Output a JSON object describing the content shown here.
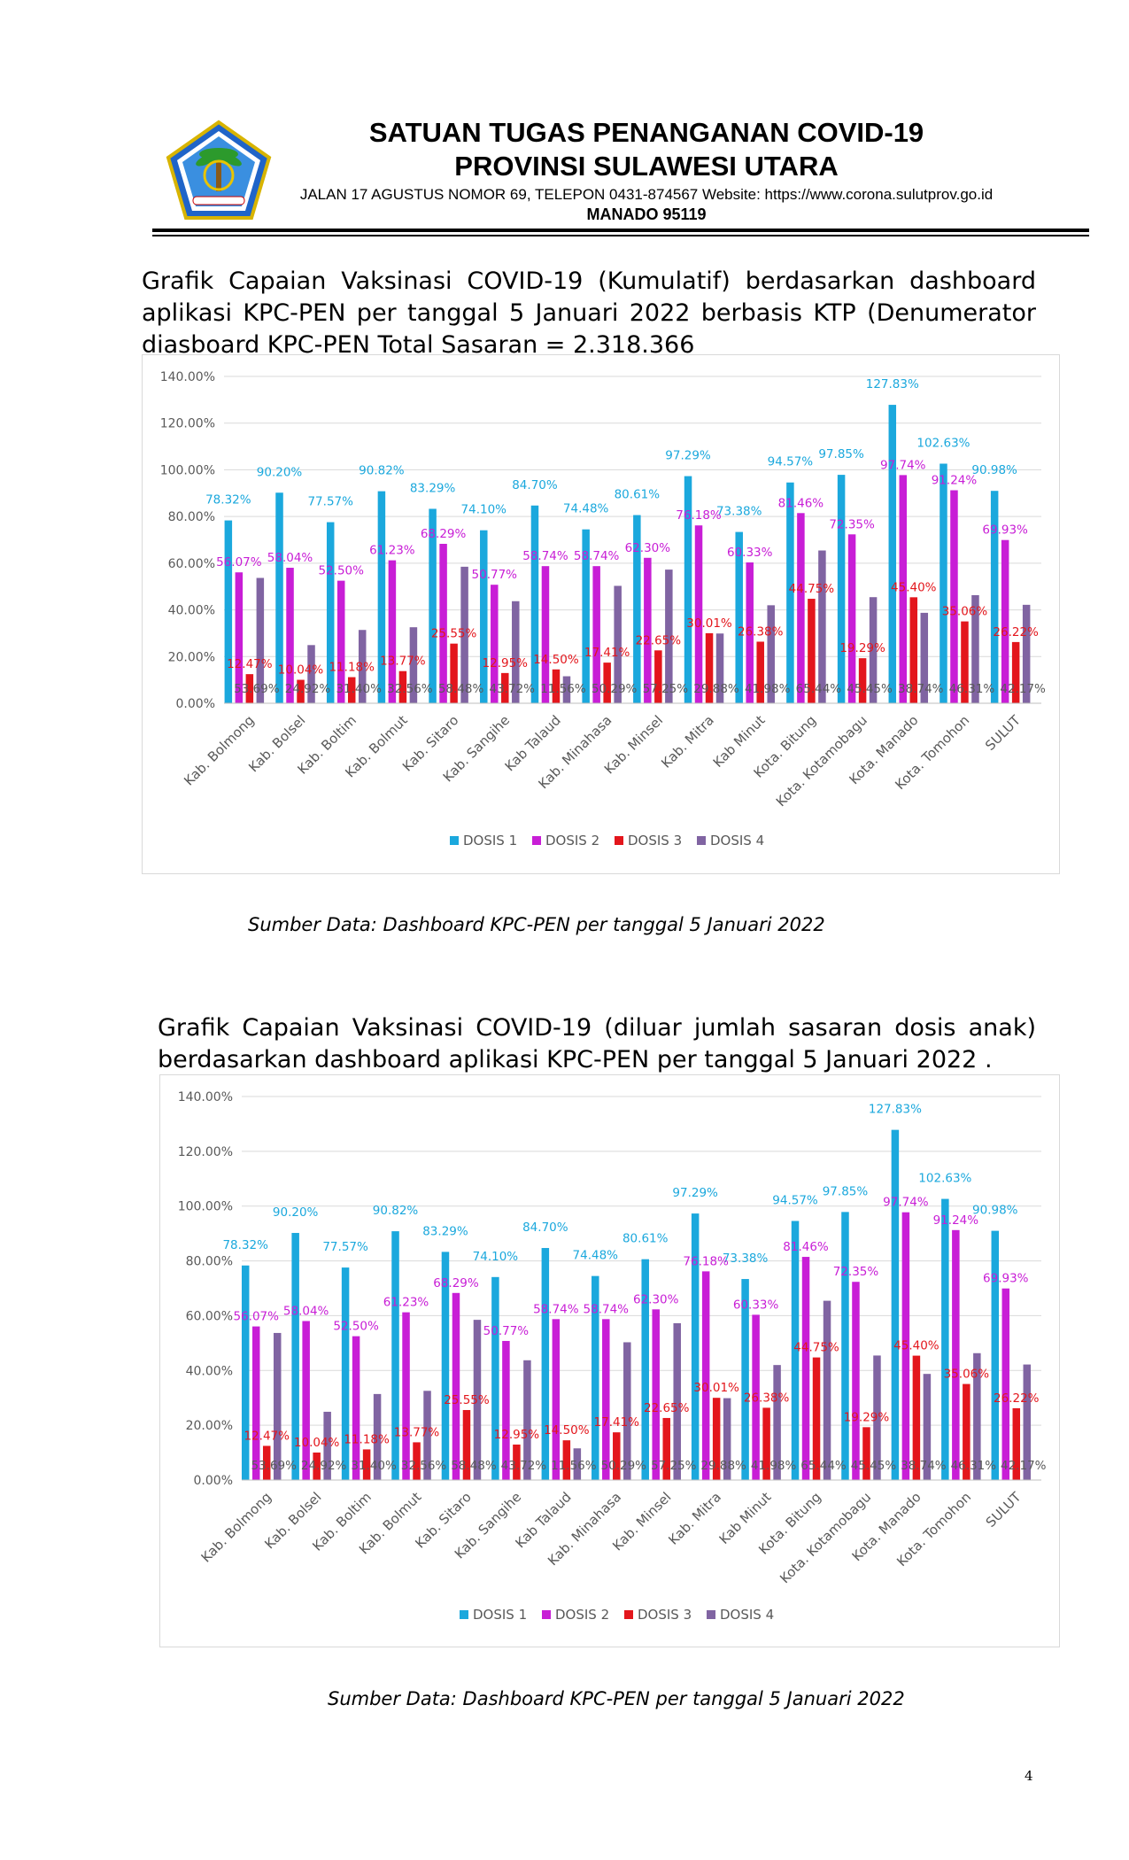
{
  "header": {
    "title_line1": "SATUAN TUGAS PENANGANAN COVID-19",
    "title_line2": "PROVINSI SULAWESI UTARA",
    "address": "JALAN 17 AGUSTUS NOMOR 69, TELEPON 0431-874567 Website: https://www.corona.sulutprov.go.id",
    "city": "MANADO  95119"
  },
  "paragraph1": "Grafik Capaian Vaksinasi COVID-19 (Kumulatif) berdasarkan dashboard aplikasi KPC-PEN per tanggal 5 Januari 2022 berbasis KTP (Denumerator diasboard KPC-PEN Total Sasaran =  2.318.366",
  "paragraph2": "Grafik Capaian Vaksinasi COVID-19 (diluar jumlah sasaran dosis anak) berdasarkan dashboard aplikasi KPC-PEN per tanggal 5 Januari 2022 .",
  "source1": "Sumber Data: Dashboard KPC-PEN per tanggal 5 Januari 2022",
  "source2": "Sumber Data: Dashboard KPC-PEN per tanggal 5 Januari 2022",
  "page_number": "4",
  "chart_data": [
    {
      "type": "bar",
      "categories": [
        "Kab. Bolmong",
        "Kab. Bolsel",
        "Kab. Boltim",
        "Kab. Bolmut",
        "Kab. Sitaro",
        "Kab. Sangihe",
        "Kab Talaud",
        "Kab. Minahasa",
        "Kab. Minsel",
        "Kab. Mitra",
        "Kab Minut",
        "Kota. Bitung",
        "Kota. Kotamobagu",
        "Kota. Manado",
        "Kota. Tomohon",
        "SULUT"
      ],
      "series": [
        {
          "name": "DOSIS 1",
          "color": "#1BA8DD",
          "values": [
            78.32,
            90.2,
            77.57,
            90.82,
            83.29,
            74.1,
            84.7,
            74.48,
            80.61,
            97.29,
            73.38,
            94.57,
            97.85,
            127.83,
            102.63,
            90.98
          ],
          "labels": [
            "78.32%",
            "90.20%",
            "77.57%",
            "90.82%",
            "83.29%",
            "74.10%",
            "84.70%",
            "74.48%",
            "80.61%",
            "97.29%",
            "73.38%",
            "94.57%",
            "97.85%",
            "127.83%",
            "102.63%",
            "90.98%"
          ]
        },
        {
          "name": "DOSIS 2",
          "color": "#C81ED6",
          "values": [
            56.07,
            58.04,
            52.5,
            61.23,
            68.29,
            50.77,
            58.74,
            58.74,
            62.3,
            76.18,
            60.33,
            81.46,
            72.35,
            97.74,
            91.24,
            69.93
          ],
          "labels": [
            "56.07%",
            "58.04%",
            "52.50%",
            "61.23%",
            "68.29%",
            "50.77%",
            "58.74%",
            "58.74%",
            "62.30%",
            "76.18%",
            "60.33%",
            "81.46%",
            "72.35%",
            "97.74%",
            "91.24%",
            "69.93%"
          ]
        },
        {
          "name": "DOSIS 3",
          "color": "#E3161C",
          "values": [
            12.47,
            10.04,
            11.18,
            13.77,
            25.55,
            12.95,
            14.5,
            17.41,
            22.65,
            30.01,
            26.38,
            44.75,
            19.29,
            45.4,
            35.06,
            26.22
          ],
          "labels": [
            "12.47%",
            "10.04%",
            "11.18%",
            "13.77%",
            "25.55%",
            "12.95%",
            "14.50%",
            "17.41%",
            "22.65%",
            "30.01%",
            "26.38%",
            "44.75%",
            "19.29%",
            "45.40%",
            "35.06%",
            "26.22%"
          ]
        },
        {
          "name": "DOSIS 4",
          "color": "#8064A2",
          "values": [
            53.69,
            24.92,
            31.4,
            32.56,
            58.48,
            43.72,
            11.56,
            50.29,
            57.25,
            29.88,
            41.98,
            65.44,
            45.45,
            38.74,
            46.31,
            42.17
          ],
          "labels": [
            "53.69%",
            "24.92%",
            "31.40%",
            "32.56%",
            "58.48%",
            "43.72%",
            "11.56%",
            "50.29%",
            "57.25%",
            "29.88%",
            "41.98%",
            "65.44%",
            "45.45%",
            "38.74%",
            "46.31%",
            "42.17%"
          ]
        }
      ],
      "y_ticks": [
        "0.00%",
        "20.00%",
        "40.00%",
        "60.00%",
        "80.00%",
        "100.00%",
        "120.00%",
        "140.00%"
      ],
      "ylim": [
        0,
        140
      ],
      "grid": true,
      "legend": "bottom",
      "title": "",
      "xlabel": "",
      "ylabel": ""
    },
    {
      "type": "bar",
      "categories": [
        "Kab. Bolmong",
        "Kab. Bolsel",
        "Kab. Boltim",
        "Kab. Bolmut",
        "Kab. Sitaro",
        "Kab. Sangihe",
        "Kab Talaud",
        "Kab. Minahasa",
        "Kab. Minsel",
        "Kab. Mitra",
        "Kab Minut",
        "Kota. Bitung",
        "Kota. Kotamobagu",
        "Kota. Manado",
        "Kota. Tomohon",
        "SULUT"
      ],
      "series": [
        {
          "name": "DOSIS 1",
          "color": "#1BA8DD",
          "values": [
            78.32,
            90.2,
            77.57,
            90.82,
            83.29,
            74.1,
            84.7,
            74.48,
            80.61,
            97.29,
            73.38,
            94.57,
            97.85,
            127.83,
            102.63,
            90.98
          ],
          "labels": [
            "78.32%",
            "90.20%",
            "77.57%",
            "90.82%",
            "83.29%",
            "74.10%",
            "84.70%",
            "74.48%",
            "80.61%",
            "97.29%",
            "73.38%",
            "94.57%",
            "97.85%",
            "127.83%",
            "102.63%",
            "90.98%"
          ]
        },
        {
          "name": "DOSIS 2",
          "color": "#C81ED6",
          "values": [
            56.07,
            58.04,
            52.5,
            61.23,
            68.29,
            50.77,
            58.74,
            58.74,
            62.3,
            76.18,
            60.33,
            81.46,
            72.35,
            97.74,
            91.24,
            69.93
          ],
          "labels": [
            "56.07%",
            "58.04%",
            "52.50%",
            "61.23%",
            "68.29%",
            "50.77%",
            "58.74%",
            "58.74%",
            "62.30%",
            "76.18%",
            "60.33%",
            "81.46%",
            "72.35%",
            "97.74%",
            "91.24%",
            "69.93%"
          ]
        },
        {
          "name": "DOSIS 3",
          "color": "#E3161C",
          "values": [
            12.47,
            10.04,
            11.18,
            13.77,
            25.55,
            12.95,
            14.5,
            17.41,
            22.65,
            30.01,
            26.38,
            44.75,
            19.29,
            45.4,
            35.06,
            26.22
          ],
          "labels": [
            "12.47%",
            "10.04%",
            "11.18%",
            "13.77%",
            "25.55%",
            "12.95%",
            "14.50%",
            "17.41%",
            "22.65%",
            "30.01%",
            "26.38%",
            "44.75%",
            "19.29%",
            "45.40%",
            "35.06%",
            "26.22%"
          ]
        },
        {
          "name": "DOSIS 4",
          "color": "#8064A2",
          "values": [
            53.69,
            24.92,
            31.4,
            32.56,
            58.48,
            43.72,
            11.56,
            50.29,
            57.25,
            29.88,
            41.98,
            65.44,
            45.45,
            38.74,
            46.31,
            42.17
          ],
          "labels": [
            "53.69%",
            "24.92%",
            "31.40%",
            "32.56%",
            "58.48%",
            "43.72%",
            "11.56%",
            "50.29%",
            "57.25%",
            "29.88%",
            "41.98%",
            "65.44%",
            "45.45%",
            "38.74%",
            "46.31%",
            "42.17%"
          ]
        }
      ],
      "y_ticks": [
        "0.00%",
        "20.00%",
        "40.00%",
        "60.00%",
        "80.00%",
        "100.00%",
        "120.00%",
        "140.00%"
      ],
      "ylim": [
        0,
        140
      ],
      "grid": true,
      "legend": "bottom",
      "title": "",
      "xlabel": "",
      "ylabel": ""
    }
  ]
}
